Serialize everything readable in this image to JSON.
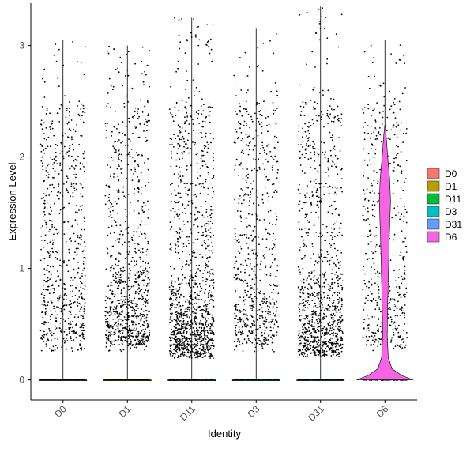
{
  "chart_data": {
    "type": "violin",
    "xlabel": "Identity",
    "ylabel": "Expression Level",
    "ylim": [
      -0.18,
      3.38
    ],
    "yticks": [
      0,
      1,
      2,
      3
    ],
    "categories": [
      "D0",
      "D1",
      "D11",
      "D3",
      "D31",
      "D6"
    ],
    "legend_position": "right",
    "grid": false,
    "series": [
      {
        "name": "D0",
        "color": "#F8766D",
        "max": 3.05,
        "zero_fraction": 0.985,
        "nonzero_mean": 1.35,
        "density_nonzero": 0.5,
        "points_nonzero": 680
      },
      {
        "name": "D1",
        "color": "#B79F00",
        "max": 3.0,
        "zero_fraction": 0.985,
        "nonzero_mean": 1.25,
        "density_nonzero": 0.8,
        "points_nonzero": 900
      },
      {
        "name": "D11",
        "color": "#00BA38",
        "max": 3.25,
        "zero_fraction": 0.985,
        "nonzero_mean": 0.85,
        "density_nonzero": 1.0,
        "points_nonzero": 1250
      },
      {
        "name": "D3",
        "color": "#00BFC4",
        "max": 3.15,
        "zero_fraction": 0.985,
        "nonzero_mean": 1.25,
        "density_nonzero": 0.5,
        "points_nonzero": 640
      },
      {
        "name": "D31",
        "color": "#619CFF",
        "max": 3.35,
        "zero_fraction": 0.985,
        "nonzero_mean": 0.9,
        "density_nonzero": 0.9,
        "points_nonzero": 1000
      },
      {
        "name": "D6",
        "color": "#F564E3",
        "max": 3.05,
        "zero_fraction": 0.75,
        "nonzero_mean": 1.2,
        "density_nonzero": 0.45,
        "points_nonzero": 520
      }
    ]
  }
}
